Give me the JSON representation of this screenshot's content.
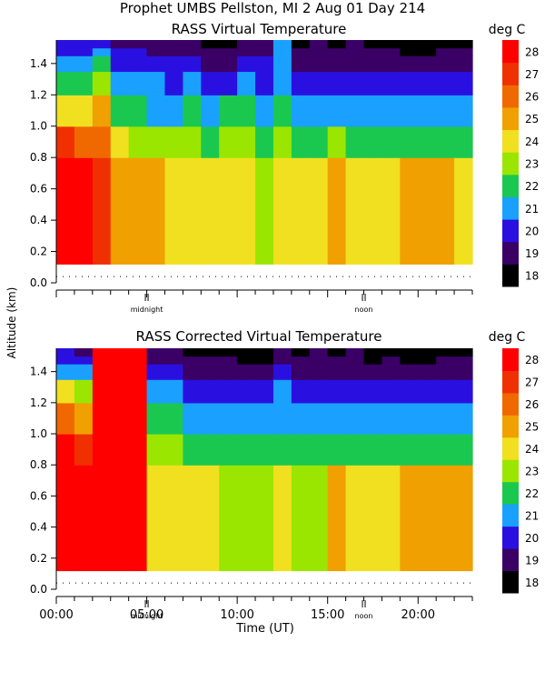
{
  "header": {
    "line1": "Prophet  UMBS Pellston, MI    2 Aug 01 Day 214"
  },
  "y_axis_label": "Altitude (km)",
  "x_axis_label": "Time (UT)",
  "x_tick_labels": [
    "00:00",
    "05:00",
    "10:00",
    "15:00",
    "20:00"
  ],
  "markers": [
    {
      "label": "midnight",
      "hour": 5.0
    },
    {
      "label": "noon",
      "hour": 17.0
    }
  ],
  "colorbar": {
    "unit": "deg C",
    "levels": [
      18,
      19,
      20,
      21,
      22,
      23,
      24,
      25,
      26,
      27,
      28
    ],
    "colors": [
      "#000000",
      "#3a0066",
      "#2a10e0",
      "#1aa0ff",
      "#1ac850",
      "#9ae600",
      "#f0e020",
      "#f0a000",
      "#f06800",
      "#f03000",
      "#ff0000"
    ]
  },
  "chart_data": [
    {
      "type": "heatmap",
      "title": "RASS Virtual Temperature",
      "unit": "deg C",
      "x_unit": "hour UT",
      "y_unit": "km",
      "xlim": [
        0,
        23
      ],
      "ylim": [
        0.0,
        1.55
      ],
      "y_ticks": [
        0.0,
        0.2,
        0.4,
        0.6,
        0.8,
        1.0,
        1.2,
        1.4
      ],
      "x_hours": [
        0.5,
        1.5,
        2.5,
        3.5,
        4.5,
        5.5,
        6.5,
        7.5,
        8.5,
        9.5,
        10.5,
        11.5,
        12.5,
        13.5,
        14.5,
        15.5,
        16.5,
        17.5,
        18.5,
        19.5,
        20.5,
        21.5,
        22.5
      ],
      "data_bottom_km": 0.12,
      "profile_tops_km": [
        0.8,
        1.0,
        1.2,
        1.35,
        1.45,
        1.5,
        1.55
      ],
      "profiles": [
        [
          28,
          27,
          24,
          22,
          21,
          20,
          20
        ],
        [
          28,
          26,
          24,
          22,
          21,
          20,
          20
        ],
        [
          27,
          26,
          25,
          23,
          22,
          21,
          20
        ],
        [
          25,
          24,
          22,
          21,
          20,
          20,
          19
        ],
        [
          25,
          23,
          22,
          21,
          20,
          20,
          19
        ],
        [
          25,
          23,
          21,
          21,
          20,
          19,
          19
        ],
        [
          24,
          23,
          21,
          20,
          20,
          19,
          19
        ],
        [
          24,
          23,
          22,
          21,
          20,
          19,
          19
        ],
        [
          24,
          22,
          21,
          20,
          19,
          19,
          18
        ],
        [
          24,
          23,
          22,
          20,
          19,
          19,
          18
        ],
        [
          24,
          23,
          22,
          21,
          20,
          19,
          19
        ],
        [
          23,
          22,
          21,
          20,
          20,
          19,
          19
        ],
        [
          24,
          23,
          22,
          21,
          21,
          21,
          21
        ],
        [
          24,
          22,
          21,
          20,
          19,
          19,
          18
        ],
        [
          24,
          22,
          21,
          20,
          19,
          19,
          19
        ],
        [
          25,
          23,
          21,
          20,
          19,
          19,
          18
        ],
        [
          24,
          22,
          21,
          20,
          19,
          19,
          19
        ],
        [
          24,
          22,
          21,
          20,
          19,
          19,
          18
        ],
        [
          24,
          22,
          21,
          20,
          19,
          19,
          18
        ],
        [
          25,
          22,
          21,
          20,
          19,
          18,
          18
        ],
        [
          25,
          22,
          21,
          20,
          19,
          18,
          18
        ],
        [
          25,
          22,
          21,
          20,
          19,
          19,
          18
        ],
        [
          24,
          22,
          21,
          20,
          19,
          19,
          18
        ]
      ]
    },
    {
      "type": "heatmap",
      "title": "RASS Corrected Virtual Temperature",
      "unit": "deg C",
      "x_unit": "hour UT",
      "y_unit": "km",
      "xlim": [
        0,
        23
      ],
      "ylim": [
        0.0,
        1.55
      ],
      "y_ticks": [
        0.0,
        0.2,
        0.4,
        0.6,
        0.8,
        1.0,
        1.2,
        1.4
      ],
      "x_hours": [
        0.5,
        1.5,
        2.5,
        3.5,
        4.5,
        5.5,
        6.5,
        7.5,
        8.5,
        9.5,
        10.5,
        11.5,
        12.5,
        13.5,
        14.5,
        15.5,
        16.5,
        17.5,
        18.5,
        19.5,
        20.5,
        21.5,
        22.5
      ],
      "data_bottom_km": 0.12,
      "profile_tops_km": [
        0.8,
        1.0,
        1.2,
        1.35,
        1.45,
        1.5,
        1.55
      ],
      "profiles": [
        [
          28,
          28,
          26,
          24,
          21,
          20,
          20
        ],
        [
          28,
          27,
          25,
          23,
          21,
          20,
          19
        ],
        [
          28,
          28,
          28,
          28,
          28,
          28,
          28
        ],
        [
          28,
          28,
          28,
          28,
          28,
          28,
          28
        ],
        [
          28,
          28,
          28,
          28,
          28,
          28,
          28
        ],
        [
          24,
          23,
          22,
          21,
          20,
          19,
          19
        ],
        [
          24,
          23,
          22,
          21,
          20,
          19,
          19
        ],
        [
          24,
          22,
          21,
          20,
          19,
          19,
          18
        ],
        [
          24,
          22,
          21,
          20,
          19,
          19,
          18
        ],
        [
          23,
          22,
          21,
          20,
          19,
          19,
          18
        ],
        [
          23,
          22,
          21,
          20,
          19,
          18,
          18
        ],
        [
          23,
          22,
          21,
          20,
          19,
          18,
          18
        ],
        [
          24,
          22,
          21,
          21,
          20,
          19,
          19
        ],
        [
          23,
          22,
          21,
          20,
          19,
          19,
          18
        ],
        [
          23,
          22,
          21,
          20,
          19,
          19,
          19
        ],
        [
          25,
          22,
          21,
          20,
          19,
          19,
          18
        ],
        [
          24,
          22,
          21,
          20,
          19,
          19,
          19
        ],
        [
          24,
          22,
          21,
          20,
          19,
          18,
          18
        ],
        [
          24,
          22,
          21,
          20,
          19,
          19,
          18
        ],
        [
          25,
          22,
          21,
          20,
          19,
          18,
          18
        ],
        [
          25,
          22,
          21,
          20,
          19,
          18,
          18
        ],
        [
          25,
          22,
          21,
          20,
          19,
          19,
          18
        ],
        [
          25,
          22,
          21,
          20,
          19,
          19,
          18
        ]
      ]
    }
  ]
}
